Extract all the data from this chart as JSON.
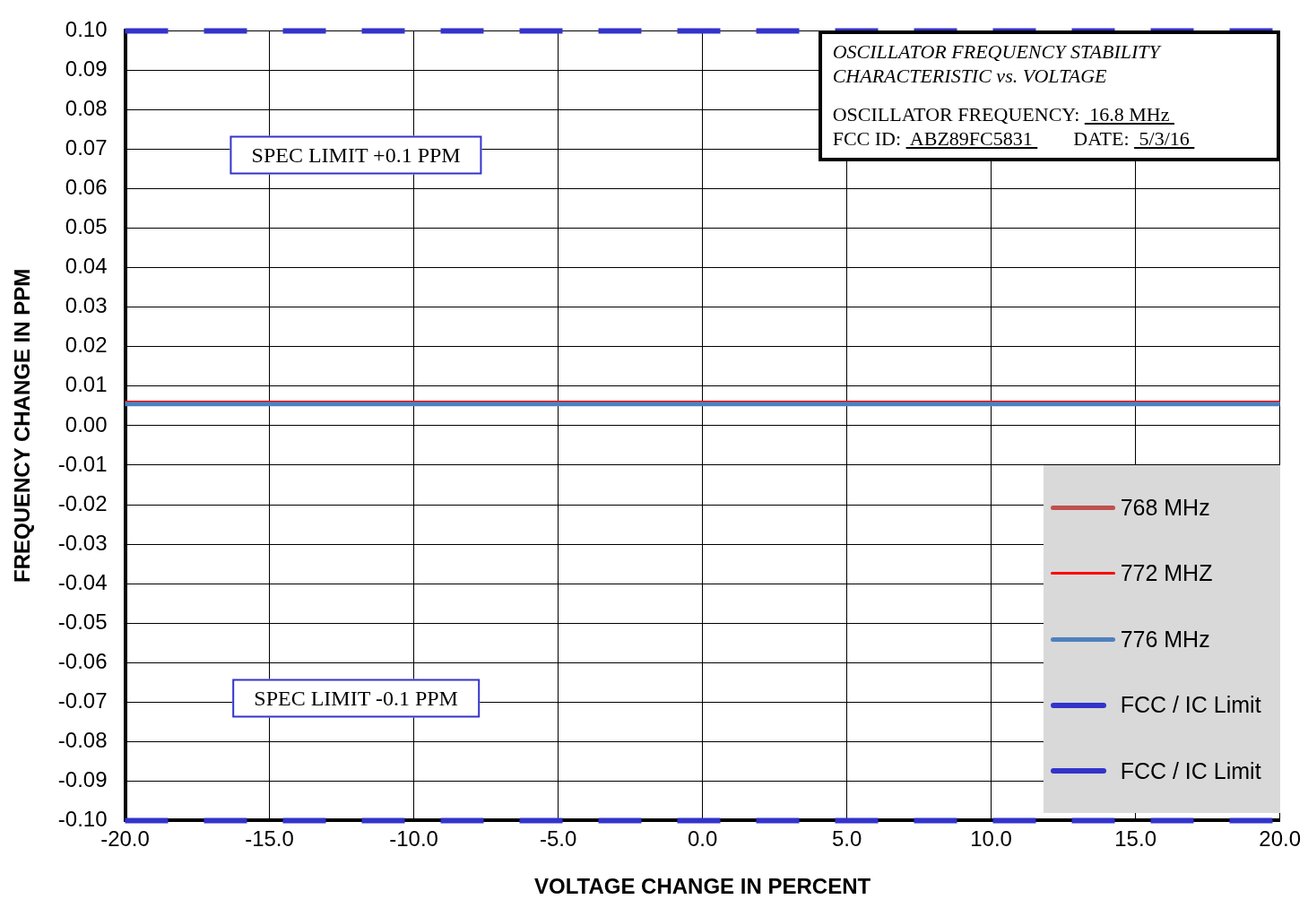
{
  "chart_data": {
    "type": "line",
    "title": "OSCILLATOR FREQUENCY STABILITY CHARACTERISTIC vs. VOLTAGE",
    "xlabel": "VOLTAGE CHANGE IN PERCENT",
    "ylabel": "FREQUENCY CHANGE IN PPM",
    "x": [
      -20,
      20
    ],
    "series": [
      {
        "name": "768 MHz",
        "color": "#c0504d",
        "values": [
          null,
          null
        ]
      },
      {
        "name": "772 MHZ",
        "color": "#ff0000",
        "values": [
          0.006,
          0.006
        ]
      },
      {
        "name": "776 MHz",
        "color": "#4f81bd",
        "values": [
          0.0055,
          0.0055
        ]
      },
      {
        "name": "FCC / IC Limit",
        "color": "#3333cc",
        "line_style": "dashed",
        "values": [
          0.1,
          0.1
        ]
      },
      {
        "name": "FCC / IC Limit",
        "color": "#3333cc",
        "line_style": "dashed",
        "values": [
          -0.1,
          -0.1
        ]
      }
    ],
    "xlim": [
      -20,
      20
    ],
    "xticks": [
      {
        "value": -20,
        "label": "-20.0"
      },
      {
        "value": -15,
        "label": "-15.0"
      },
      {
        "value": -10,
        "label": "-10.0"
      },
      {
        "value": -5,
        "label": "-5.0"
      },
      {
        "value": 0,
        "label": "0.0"
      },
      {
        "value": 5,
        "label": "5.0"
      },
      {
        "value": 10,
        "label": "10.0"
      },
      {
        "value": 15,
        "label": "15.0"
      },
      {
        "value": 20,
        "label": "20.0"
      }
    ],
    "ylim": [
      -0.1,
      0.1
    ],
    "yticks": [
      {
        "value": -0.1,
        "label": "-0.10"
      },
      {
        "value": -0.09,
        "label": "-0.09"
      },
      {
        "value": -0.08,
        "label": "-0.08"
      },
      {
        "value": -0.07,
        "label": "-0.07"
      },
      {
        "value": -0.06,
        "label": "-0.06"
      },
      {
        "value": -0.05,
        "label": "-0.05"
      },
      {
        "value": -0.04,
        "label": "-0.04"
      },
      {
        "value": -0.03,
        "label": "-0.03"
      },
      {
        "value": -0.02,
        "label": "-0.02"
      },
      {
        "value": -0.01,
        "label": "-0.01"
      },
      {
        "value": 0,
        "label": "0.00"
      },
      {
        "value": 0.01,
        "label": "0.01"
      },
      {
        "value": 0.02,
        "label": "0.02"
      },
      {
        "value": 0.03,
        "label": "0.03"
      },
      {
        "value": 0.04,
        "label": "0.04"
      },
      {
        "value": 0.05,
        "label": "0.05"
      },
      {
        "value": 0.06,
        "label": "0.06"
      },
      {
        "value": 0.07,
        "label": "0.07"
      },
      {
        "value": 0.08,
        "label": "0.08"
      },
      {
        "value": 0.09,
        "label": "0.09"
      },
      {
        "value": 0.1,
        "label": "0.10"
      }
    ],
    "annotations": [
      "SPEC LIMIT +0.1 PPM",
      "SPEC LIMIT -0.1 PPM",
      "OSCILLATOR FREQUENCY: 16.8 MHz",
      "FCC ID: ABZ89FC5831",
      "DATE: 5/3/16"
    ],
    "grid": true,
    "legend": "bottom right",
    "marker": "none",
    "line_style": "solid"
  }
}
